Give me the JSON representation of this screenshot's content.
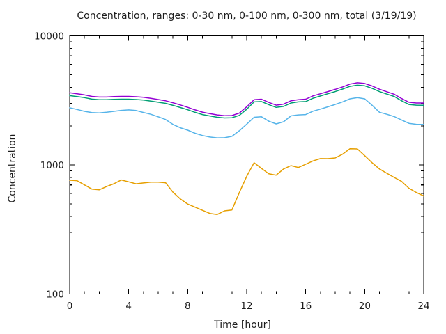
{
  "title": "Concentration, ranges: 0-30 nm, 0-100 nm, 0-300 nm, total (3/19/19)",
  "chart_data": {
    "type": "line",
    "title": "Concentration, ranges: 0-30 nm, 0-100 nm, 0-300 nm, total (3/19/19)",
    "xlabel": "Time [hour]",
    "ylabel": "Concentration",
    "xlim": [
      0,
      24
    ],
    "ylim": [
      100,
      10000
    ],
    "y_scale": "log",
    "grid": false,
    "legend_position": "none",
    "x_major_ticks": [
      0,
      4,
      8,
      12,
      16,
      20,
      24
    ],
    "x_minor_step": 1,
    "y_major_ticks": [
      100,
      1000,
      10000
    ],
    "y_minor_multiples": [
      2,
      3,
      4,
      5,
      6,
      7,
      8,
      9
    ],
    "text_color": "#1c1c1c",
    "background": "#ffffff",
    "x": [
      0,
      0.5,
      1,
      1.5,
      2,
      2.5,
      3,
      3.5,
      4,
      4.5,
      5,
      5.5,
      6,
      6.5,
      7,
      7.5,
      8,
      8.5,
      9,
      9.5,
      10,
      10.5,
      11,
      11.5,
      12,
      12.5,
      13,
      13.5,
      14,
      14.5,
      15,
      15.5,
      16,
      16.5,
      17,
      17.5,
      18,
      18.5,
      19,
      19.5,
      20,
      20.5,
      21,
      21.5,
      22,
      22.5,
      23,
      23.5,
      24
    ],
    "series": [
      {
        "name": "0-30 nm",
        "color": "#e69f00",
        "values": [
          761,
          755,
          700,
          650,
          641,
          680,
          715,
          765,
          740,
          714,
          725,
          735,
          735,
          728,
          615,
          545,
          498,
          471,
          445,
          421,
          413,
          441,
          448,
          610,
          816,
          1040,
          940,
          853,
          833,
          930,
          988,
          955,
          1012,
          1075,
          1120,
          1118,
          1132,
          1210,
          1335,
          1330,
          1180,
          1040,
          930,
          862,
          800,
          745,
          660,
          612,
          575
        ]
      },
      {
        "name": "0-100 nm",
        "color": "#56b4e9",
        "values": [
          2770,
          2690,
          2600,
          2545,
          2530,
          2560,
          2600,
          2645,
          2670,
          2640,
          2550,
          2470,
          2360,
          2250,
          2060,
          1940,
          1860,
          1760,
          1690,
          1645,
          1620,
          1625,
          1665,
          1840,
          2070,
          2340,
          2360,
          2180,
          2080,
          2160,
          2400,
          2440,
          2455,
          2610,
          2705,
          2820,
          2940,
          3080,
          3250,
          3320,
          3250,
          2900,
          2560,
          2470,
          2370,
          2230,
          2100,
          2065,
          2060
        ]
      },
      {
        "name": "0-300 nm",
        "color": "#009e73",
        "values": [
          3445,
          3385,
          3320,
          3235,
          3200,
          3200,
          3220,
          3230,
          3230,
          3210,
          3185,
          3125,
          3060,
          3000,
          2895,
          2785,
          2675,
          2555,
          2455,
          2395,
          2340,
          2310,
          2320,
          2420,
          2700,
          3080,
          3100,
          2930,
          2790,
          2840,
          3020,
          3080,
          3100,
          3290,
          3420,
          3560,
          3700,
          3870,
          4060,
          4150,
          4100,
          3920,
          3700,
          3540,
          3390,
          3140,
          2940,
          2905,
          2900
        ]
      },
      {
        "name": "total",
        "color": "#9400d3",
        "values": [
          3625,
          3560,
          3490,
          3395,
          3360,
          3360,
          3385,
          3395,
          3395,
          3375,
          3345,
          3285,
          3210,
          3140,
          3030,
          2915,
          2795,
          2670,
          2565,
          2495,
          2440,
          2405,
          2415,
          2520,
          2820,
          3200,
          3230,
          3050,
          2905,
          2960,
          3140,
          3200,
          3230,
          3430,
          3560,
          3700,
          3850,
          4020,
          4230,
          4330,
          4280,
          4090,
          3860,
          3690,
          3530,
          3270,
          3060,
          3020,
          3020
        ]
      }
    ]
  }
}
